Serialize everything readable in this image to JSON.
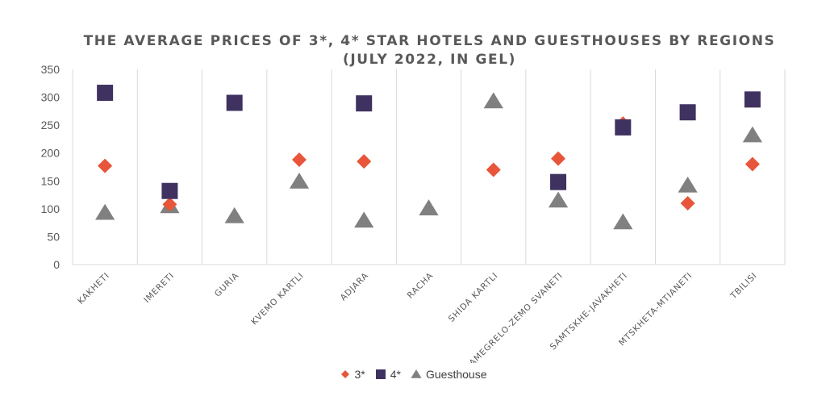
{
  "chart_data": {
    "type": "scatter",
    "title_line1": "THE AVERAGE PRICES OF 3*, 4* STAR HOTELS AND GUESTHOUSES BY REGIONS",
    "title_line2": "(JULY 2022, IN GEL)",
    "categories": [
      "KAKHETI",
      "IMERETI",
      "GURIA",
      "KVEMO KARTLI",
      "ADJARA",
      "RACHA",
      "SHIDA KARTLI",
      "SAMEGRELO-ZEMO SVANETI",
      "SAMTSKHE-JAVAKHETI",
      "MTSKHETA-MTIANETI",
      "TBILISI"
    ],
    "ylim": [
      0,
      350
    ],
    "yticks": [
      0,
      50,
      100,
      150,
      200,
      250,
      300,
      350
    ],
    "xlabel": "",
    "ylabel": "",
    "grid": "vertical separators between categories",
    "legend_position": "bottom",
    "series": [
      {
        "name": "3*",
        "marker": "diamond",
        "color": "#E8553A",
        "values": [
          177,
          108,
          null,
          188,
          185,
          null,
          170,
          190,
          253,
          110,
          180
        ]
      },
      {
        "name": "4*",
        "marker": "square",
        "color": "#3F3160",
        "values": [
          308,
          132,
          290,
          null,
          289,
          null,
          null,
          148,
          246,
          273,
          296
        ]
      },
      {
        "name": "Guesthouse",
        "marker": "triangle",
        "color": "#808080",
        "values": [
          93,
          105,
          87,
          149,
          79,
          101,
          293,
          115,
          76,
          142,
          232
        ]
      }
    ]
  }
}
